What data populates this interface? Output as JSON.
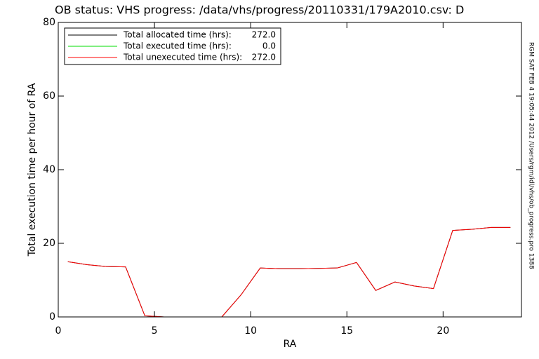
{
  "chart_data": {
    "type": "line",
    "title": "OB status: VHS progress: /data/vhs/progress/20110331/179A2010.csv: D",
    "x_label": "RA",
    "y_label": "Total execution time per hour of RA",
    "side_note": "RGM SAT FEB  4 19:05:44 2012 /Users/rgm/idl/vhs/ob_progress.pro 1388",
    "x": [
      0.5,
      1.5,
      2.5,
      3.5,
      4.5,
      5.5,
      6.5,
      7.5,
      8.5,
      9.5,
      10.5,
      11.5,
      12.5,
      13.5,
      14.5,
      15.5,
      16.5,
      17.5,
      18.5,
      19.5,
      20.5,
      21.5,
      22.5,
      23.5
    ],
    "series": [
      {
        "name": "Total executed time (hrs):",
        "total": "0.0",
        "color": "#00dd00",
        "values": [
          0,
          0,
          0,
          0,
          0,
          0,
          0,
          0,
          0,
          0,
          0,
          0,
          0,
          0,
          0,
          0,
          0,
          0,
          0,
          0,
          0,
          0,
          0,
          0
        ]
      },
      {
        "name": "Total allocated time (hrs):",
        "total": "272.0",
        "color": "#000000",
        "values": [
          15,
          14.2,
          13.7,
          13.6,
          0.3,
          0,
          0,
          0,
          0,
          6,
          13.3,
          13.1,
          13.1,
          13.2,
          13.3,
          14.8,
          7.2,
          9.5,
          8.4,
          7.7,
          23.5,
          23.8,
          24.3,
          24.3
        ]
      },
      {
        "name": "Total unexecuted time (hrs):",
        "total": "272.0",
        "color": "#ff0000",
        "values": [
          15,
          14.2,
          13.7,
          13.6,
          0.3,
          0,
          0,
          0,
          0,
          6,
          13.3,
          13.1,
          13.1,
          13.2,
          13.3,
          14.8,
          7.2,
          9.5,
          8.4,
          7.7,
          23.5,
          23.8,
          24.3,
          24.3
        ]
      }
    ],
    "legend_order": [
      1,
      0,
      2
    ],
    "xlim": [
      0,
      24
    ],
    "xticks": [
      0,
      5,
      10,
      15,
      20
    ],
    "ylim": [
      0,
      80
    ],
    "yticks": [
      0,
      20,
      40,
      60,
      80
    ]
  }
}
